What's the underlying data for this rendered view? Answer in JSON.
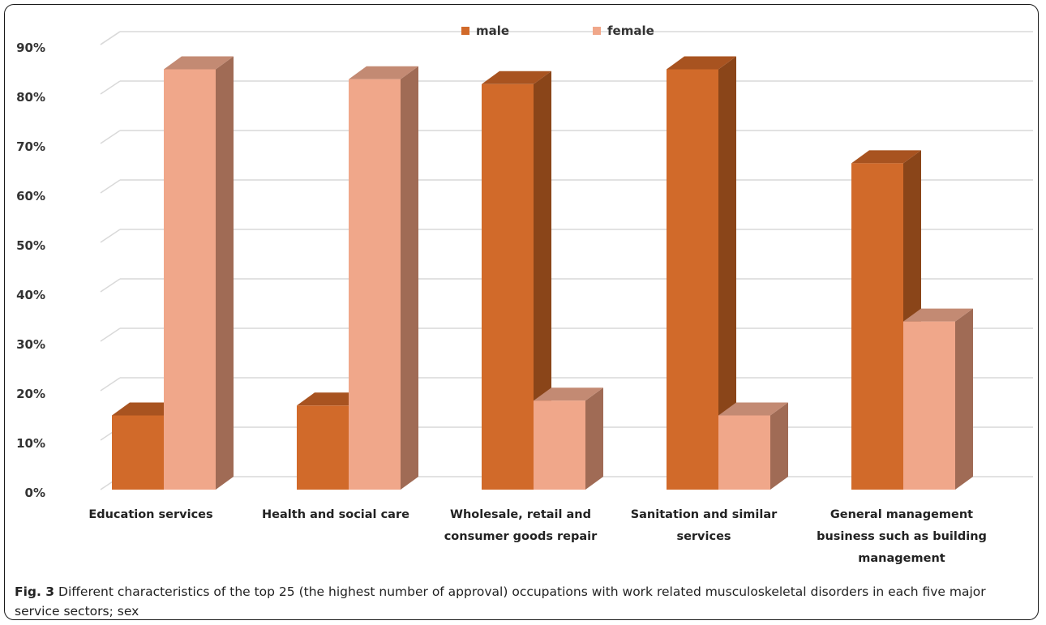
{
  "chart_data": {
    "type": "bar",
    "categories": [
      "Education services",
      "Health and social care",
      "Wholesale, retail and consumer goods repair",
      "Sanitation and similar services",
      "General management business such as building management"
    ],
    "category_lines": [
      [
        "Education services"
      ],
      [
        "Health and social care"
      ],
      [
        "Wholesale, retail and",
        "consumer goods repair"
      ],
      [
        "Sanitation and similar",
        "services"
      ],
      [
        "General management",
        "business such as building",
        "management"
      ]
    ],
    "series": [
      {
        "name": "male",
        "values": [
          15,
          17,
          82,
          85,
          66
        ],
        "color": "#d16a2a"
      },
      {
        "name": "female",
        "values": [
          85,
          83,
          18,
          15,
          34
        ],
        "color": "#f0a78a"
      }
    ],
    "y_ticks": [
      "0%",
      "10%",
      "20%",
      "30%",
      "40%",
      "50%",
      "60%",
      "70%",
      "80%",
      "90%"
    ],
    "ylim": [
      0,
      90
    ],
    "grid": true,
    "legend_position": "top",
    "style": "3d-column"
  },
  "caption": {
    "label": "Fig. 3",
    "text": " Different characteristics of the top 25 (the highest number of approval) occupations with work related musculoskeletal disorders in each five major service sectors; sex"
  }
}
